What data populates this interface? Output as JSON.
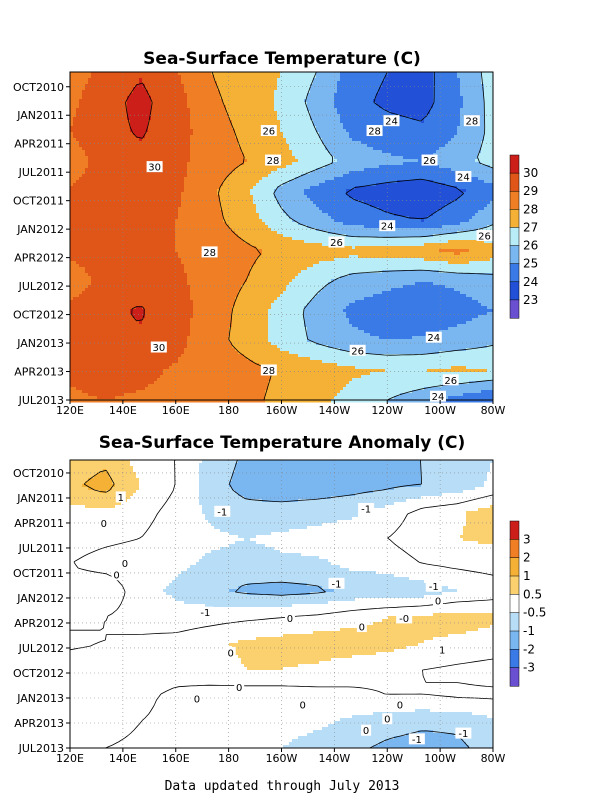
{
  "footer": "Data updated through July 2013",
  "chart_data": [
    {
      "type": "heatmap",
      "title": "Sea-Surface Temperature (C)",
      "xlabel": "",
      "ylabel": "",
      "x_ticks": [
        "120E",
        "140E",
        "160E",
        "180",
        "160W",
        "140W",
        "120W",
        "100W",
        "80W"
      ],
      "y_ticks": [
        "OCT2010",
        "JAN2011",
        "APR2011",
        "JUL2011",
        "OCT2011",
        "JAN2012",
        "APR2012",
        "JUL2012",
        "OCT2012",
        "JAN2013",
        "APR2013",
        "JUL2013"
      ],
      "colorbar": {
        "ticks": [
          "23",
          "24",
          "25",
          "26",
          "27",
          "28",
          "29",
          "30"
        ],
        "colors": [
          "#6a4fd0",
          "#2251d8",
          "#3a7ae6",
          "#7ab6f0",
          "#b8ecf6",
          "#f5b135",
          "#f07e24",
          "#e05518",
          "#cc1f1a"
        ]
      },
      "grid": true,
      "levels": [
        24,
        26,
        28,
        30
      ],
      "series": [
        {
          "values": [
            28.5,
            29.3,
            29.9,
            29.1,
            28.0,
            27.5,
            27.0,
            26.0,
            24.5,
            24.0,
            23.5,
            25.0,
            26.5
          ]
        },
        {
          "values": [
            28.8,
            29.6,
            30.3,
            29.4,
            28.2,
            27.6,
            26.8,
            25.6,
            24.3,
            23.8,
            23.6,
            24.8,
            26.4
          ]
        },
        {
          "values": [
            29.0,
            29.7,
            30.1,
            29.5,
            28.4,
            27.8,
            27.0,
            26.0,
            24.8,
            24.4,
            24.2,
            25.0,
            26.3
          ]
        },
        {
          "values": [
            28.5,
            29.4,
            29.8,
            29.3,
            28.5,
            28.0,
            27.4,
            26.5,
            25.6,
            25.2,
            25.0,
            25.6,
            26.4
          ]
        },
        {
          "values": [
            29.1,
            29.5,
            29.6,
            29.2,
            28.2,
            27.2,
            25.6,
            24.6,
            23.8,
            23.5,
            23.3,
            23.8,
            24.6
          ]
        },
        {
          "values": [
            29.0,
            29.4,
            29.5,
            29.0,
            28.3,
            27.5,
            26.3,
            25.4,
            24.6,
            24.2,
            24.0,
            24.6,
            25.8
          ]
        },
        {
          "values": [
            29.2,
            29.4,
            29.4,
            29.0,
            28.6,
            28.2,
            27.8,
            27.5,
            27.3,
            27.5,
            27.8,
            28.3,
            27.5
          ]
        },
        {
          "values": [
            28.5,
            29.3,
            29.6,
            29.2,
            28.6,
            28.0,
            27.3,
            26.3,
            25.6,
            25.3,
            25.0,
            25.2,
            25.6
          ]
        },
        {
          "values": [
            29.2,
            29.8,
            30.1,
            29.4,
            28.6,
            27.6,
            26.6,
            25.6,
            24.8,
            24.4,
            24.3,
            24.6,
            25.0
          ]
        },
        {
          "values": [
            29.2,
            29.7,
            29.9,
            29.3,
            28.4,
            27.6,
            26.6,
            25.8,
            25.2,
            25.0,
            25.1,
            25.4,
            25.8
          ]
        },
        {
          "values": [
            29.1,
            29.3,
            29.2,
            28.9,
            28.6,
            28.3,
            27.9,
            27.6,
            27.2,
            27.0,
            27.0,
            27.2,
            27.0
          ]
        },
        {
          "values": [
            28.9,
            29.0,
            28.9,
            28.8,
            28.5,
            28.2,
            27.8,
            27.3,
            26.6,
            26.0,
            25.4,
            24.6,
            24.0
          ]
        }
      ],
      "contour_labels": [
        "30",
        "30",
        "28",
        "28",
        "28",
        "28",
        "28",
        "26",
        "26",
        "26",
        "26",
        "26",
        "26",
        "24",
        "24",
        "24",
        "24",
        "24"
      ]
    },
    {
      "type": "heatmap",
      "title": "Sea-Surface Temperature Anomaly (C)",
      "xlabel": "",
      "ylabel": "",
      "x_ticks": [
        "120E",
        "140E",
        "160E",
        "180",
        "160W",
        "140W",
        "120W",
        "100W",
        "80W"
      ],
      "y_ticks": [
        "OCT2010",
        "JAN2011",
        "APR2011",
        "JUL2011",
        "OCT2011",
        "JAN2012",
        "APR2012",
        "JUL2012",
        "OCT2012",
        "JAN2013",
        "APR2013",
        "JUL2013"
      ],
      "colorbar": {
        "ticks": [
          "3",
          "2",
          "1",
          "0.5",
          "-0.5",
          "-1",
          "-2",
          "-3"
        ],
        "colors": [
          "#cc1f1a",
          "#f07e24",
          "#f5b135",
          "#fbd170",
          "#ffffff",
          "#b8ddf6",
          "#7ab6f0",
          "#3a7ae6",
          "#6a4fd0"
        ]
      },
      "grid": true,
      "levels": [
        -1,
        0,
        1
      ],
      "series": [
        {
          "values": [
            0.7,
            0.9,
            0.3,
            0.0,
            -0.7,
            -1.1,
            -1.3,
            -1.3,
            -1.2,
            -1.0,
            -1.0,
            -0.8,
            -0.5
          ]
        },
        {
          "values": [
            0.9,
            1.2,
            0.5,
            0.0,
            -0.8,
            -1.2,
            -1.3,
            -1.3,
            -1.2,
            -1.1,
            -1.0,
            -0.8,
            -0.4
          ]
        },
        {
          "values": [
            0.3,
            0.4,
            0.2,
            -0.2,
            -0.6,
            -0.8,
            -0.8,
            -0.7,
            -0.6,
            -0.3,
            0.2,
            0.4,
            0.8
          ]
        },
        {
          "values": [
            0.2,
            0.1,
            0.0,
            -0.3,
            -0.4,
            -0.5,
            -0.4,
            -0.3,
            -0.2,
            0.0,
            0.3,
            0.5,
            0.6
          ]
        },
        {
          "values": [
            0.0,
            -0.2,
            -0.3,
            -0.4,
            -0.6,
            -0.7,
            -0.6,
            -0.6,
            -0.4,
            -0.3,
            0.0,
            0.1,
            0.2
          ]
        },
        {
          "values": [
            0.3,
            0.4,
            -0.3,
            -0.6,
            -0.9,
            -1.1,
            -1.2,
            -1.1,
            -0.9,
            -0.9,
            -0.8,
            -0.5,
            -0.3
          ]
        },
        {
          "values": [
            0.1,
            0.0,
            -0.2,
            -0.3,
            -0.2,
            -0.1,
            0.0,
            0.1,
            0.3,
            0.5,
            0.6,
            0.7,
            0.6
          ]
        },
        {
          "values": [
            -0.1,
            0.0,
            0.1,
            0.2,
            0.4,
            0.6,
            0.7,
            0.8,
            0.8,
            0.7,
            0.5,
            0.4,
            0.3
          ]
        },
        {
          "values": [
            0.3,
            0.4,
            0.3,
            0.2,
            0.3,
            0.5,
            0.5,
            0.4,
            0.2,
            0.1,
            0.0,
            -0.1,
            -0.2
          ]
        },
        {
          "values": [
            0.5,
            0.4,
            0.1,
            -0.1,
            -0.2,
            -0.3,
            -0.3,
            -0.2,
            -0.1,
            0.0,
            0.0,
            0.1,
            0.1
          ]
        },
        {
          "values": [
            0.3,
            0.2,
            0.0,
            -0.1,
            -0.2,
            -0.2,
            -0.3,
            -0.4,
            -0.6,
            -0.8,
            -0.9,
            -0.9,
            -0.6
          ]
        },
        {
          "values": [
            0.1,
            0.0,
            -0.1,
            -0.2,
            -0.3,
            -0.3,
            -0.5,
            -0.7,
            -0.9,
            -1.1,
            -1.2,
            -1.1,
            -0.8
          ]
        }
      ],
      "contour_labels": [
        "1",
        "-1",
        "-1",
        "0",
        "0",
        "0",
        "0",
        "-1",
        "-1",
        "-1",
        "0",
        "0",
        "-0",
        "1",
        "0",
        "0",
        "0",
        "0",
        "0",
        "0",
        "0",
        "-1",
        "-1"
      ]
    }
  ]
}
